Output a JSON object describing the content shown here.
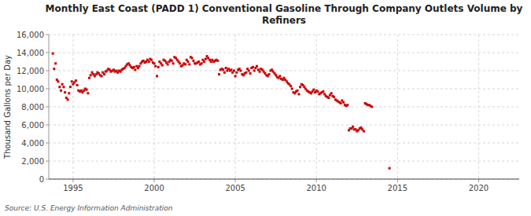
{
  "chart_data": {
    "type": "scatter",
    "title": "Monthly East Coast (PADD 1) Conventional Gasoline Through Company Outlets Volume by\nRefiners",
    "y_label": "Thousand Gallons per Day",
    "annotations": [
      "Source: U.S. Energy Information Administration"
    ],
    "color": "#cc0000",
    "marker": "square",
    "grid": true,
    "xlim": [
      1993.5,
      2022.5
    ],
    "ylim": [
      0,
      16000
    ],
    "xticks": [
      1995,
      2000,
      2005,
      2010,
      2015,
      2020
    ],
    "yticks": [
      0,
      {
        "value": 2000,
        "label": "2,000"
      },
      {
        "value": 4000,
        "label": "4,000"
      },
      {
        "value": 6000,
        "label": "6,000"
      },
      {
        "value": 8000,
        "label": "8,000"
      },
      {
        "value": 10000,
        "label": "10,000"
      },
      {
        "value": 12000,
        "label": "12,000"
      },
      {
        "value": 14000,
        "label": "14,000"
      },
      {
        "value": 16000,
        "label": "16,000"
      }
    ],
    "x": [
      1993.75,
      1993.83,
      1993.92,
      1994.0,
      1994.08,
      1994.17,
      1994.25,
      1994.33,
      1994.42,
      1994.5,
      1994.58,
      1994.67,
      1994.75,
      1994.83,
      1994.92,
      1995.0,
      1995.08,
      1995.17,
      1995.25,
      1995.33,
      1995.42,
      1995.5,
      1995.58,
      1995.67,
      1995.75,
      1995.83,
      1995.92,
      1996.0,
      1996.08,
      1996.17,
      1996.25,
      1996.33,
      1996.42,
      1996.5,
      1996.58,
      1996.67,
      1996.75,
      1996.83,
      1996.92,
      1997.0,
      1997.08,
      1997.17,
      1997.25,
      1997.33,
      1997.42,
      1997.5,
      1997.58,
      1997.67,
      1997.75,
      1997.83,
      1997.92,
      1998.0,
      1998.08,
      1998.17,
      1998.25,
      1998.33,
      1998.42,
      1998.5,
      1998.58,
      1998.67,
      1998.75,
      1998.83,
      1998.92,
      1999.0,
      1999.08,
      1999.17,
      1999.25,
      1999.33,
      1999.42,
      1999.5,
      1999.58,
      1999.67,
      1999.75,
      1999.83,
      1999.92,
      2000.0,
      2000.08,
      2000.17,
      2000.25,
      2000.33,
      2000.42,
      2000.5,
      2000.58,
      2000.67,
      2000.75,
      2000.83,
      2000.92,
      2001.0,
      2001.08,
      2001.17,
      2001.25,
      2001.33,
      2001.42,
      2001.5,
      2001.58,
      2001.67,
      2001.75,
      2001.83,
      2001.92,
      2002.0,
      2002.08,
      2002.17,
      2002.25,
      2002.33,
      2002.42,
      2002.5,
      2002.58,
      2002.67,
      2002.75,
      2002.83,
      2002.92,
      2003.0,
      2003.08,
      2003.17,
      2003.25,
      2003.33,
      2003.42,
      2003.5,
      2003.58,
      2003.67,
      2003.75,
      2003.83,
      2003.92,
      2004.0,
      2004.08,
      2004.17,
      2004.25,
      2004.33,
      2004.42,
      2004.5,
      2004.58,
      2004.67,
      2004.75,
      2004.83,
      2004.92,
      2005.0,
      2005.08,
      2005.17,
      2005.25,
      2005.33,
      2005.42,
      2005.5,
      2005.58,
      2005.67,
      2005.75,
      2005.83,
      2005.92,
      2006.0,
      2006.08,
      2006.17,
      2006.25,
      2006.33,
      2006.42,
      2006.5,
      2006.58,
      2006.67,
      2006.75,
      2006.83,
      2006.92,
      2007.0,
      2007.08,
      2007.17,
      2007.25,
      2007.33,
      2007.42,
      2007.5,
      2007.58,
      2007.67,
      2007.75,
      2007.83,
      2007.92,
      2008.0,
      2008.08,
      2008.17,
      2008.25,
      2008.33,
      2008.42,
      2008.5,
      2008.58,
      2008.67,
      2008.75,
      2008.83,
      2008.92,
      2009.0,
      2009.08,
      2009.17,
      2009.25,
      2009.33,
      2009.42,
      2009.5,
      2009.58,
      2009.67,
      2009.75,
      2009.83,
      2009.92,
      2010.0,
      2010.08,
      2010.17,
      2010.25,
      2010.33,
      2010.42,
      2010.5,
      2010.58,
      2010.67,
      2010.75,
      2010.83,
      2010.92,
      2011.0,
      2011.08,
      2011.17,
      2011.25,
      2011.33,
      2011.42,
      2011.5,
      2011.58,
      2011.67,
      2011.75,
      2011.83,
      2011.92,
      2012.0,
      2012.08,
      2012.17,
      2012.25,
      2012.33,
      2012.42,
      2012.5,
      2012.58,
      2012.67,
      2012.75,
      2012.83,
      2012.92,
      2013.0,
      2013.08,
      2013.17,
      2013.25,
      2013.33,
      2013.42,
      2014.5
    ],
    "values": [
      13900,
      12200,
      12800,
      11000,
      10800,
      10200,
      9800,
      10500,
      10200,
      9600,
      9000,
      8800,
      9500,
      10200,
      10800,
      10500,
      10700,
      10900,
      10400,
      9800,
      9700,
      9800,
      9600,
      9800,
      10000,
      9900,
      9500,
      11200,
      11500,
      11800,
      11600,
      11400,
      11600,
      11800,
      11700,
      11500,
      11400,
      11800,
      11600,
      11900,
      12000,
      12200,
      12100,
      11900,
      12000,
      12100,
      11900,
      12000,
      11800,
      12000,
      11900,
      12100,
      12200,
      12300,
      12500,
      12700,
      12800,
      12600,
      12400,
      12300,
      12400,
      12100,
      12500,
      12300,
      12500,
      12800,
      13000,
      13100,
      12900,
      13000,
      13200,
      13000,
      13300,
      13200,
      12900,
      12800,
      12500,
      11400,
      12400,
      13000,
      12800,
      12600,
      13200,
      13100,
      12900,
      12700,
      13000,
      13200,
      13100,
      12800,
      13500,
      13400,
      13200,
      13000,
      12800,
      12500,
      12600,
      12800,
      12700,
      13200,
      13000,
      12700,
      13500,
      13400,
      13100,
      12800,
      12800,
      12900,
      13000,
      12700,
      12800,
      13200,
      13000,
      13300,
      13600,
      13400,
      13200,
      13000,
      13200,
      13000,
      13100,
      13200,
      13100,
      11600,
      12100,
      12200,
      12100,
      11800,
      12300,
      12000,
      12200,
      12000,
      12100,
      11800,
      12000,
      11400,
      11800,
      12100,
      12200,
      12000,
      11600,
      11500,
      11700,
      11800,
      12200,
      12000,
      11700,
      12300,
      12400,
      12000,
      12300,
      12500,
      12100,
      11900,
      12200,
      12100,
      11900,
      11700,
      11500,
      11400,
      11600,
      12000,
      12100,
      11900,
      11700,
      11500,
      11300,
      11200,
      11400,
      11100,
      11000,
      11200,
      11000,
      10800,
      10600,
      10500,
      10300,
      10000,
      9600,
      9500,
      9700,
      9800,
      9400,
      10200,
      10500,
      10400,
      10200,
      10000,
      9800,
      9700,
      9600,
      9500,
      9700,
      9900,
      9600,
      9800,
      9700,
      9400,
      9500,
      9600,
      9700,
      9400,
      9200,
      9100,
      9000,
      9300,
      9500,
      9200,
      9100,
      8800,
      8700,
      8600,
      8500,
      8400,
      8700,
      8500,
      8200,
      8100,
      8200,
      5400,
      5600,
      5600,
      5800,
      5500,
      5500,
      5300,
      5400,
      5600,
      5700,
      5500,
      5300,
      8400,
      8300,
      8200,
      8200,
      8100,
      8000,
      1200
    ]
  }
}
